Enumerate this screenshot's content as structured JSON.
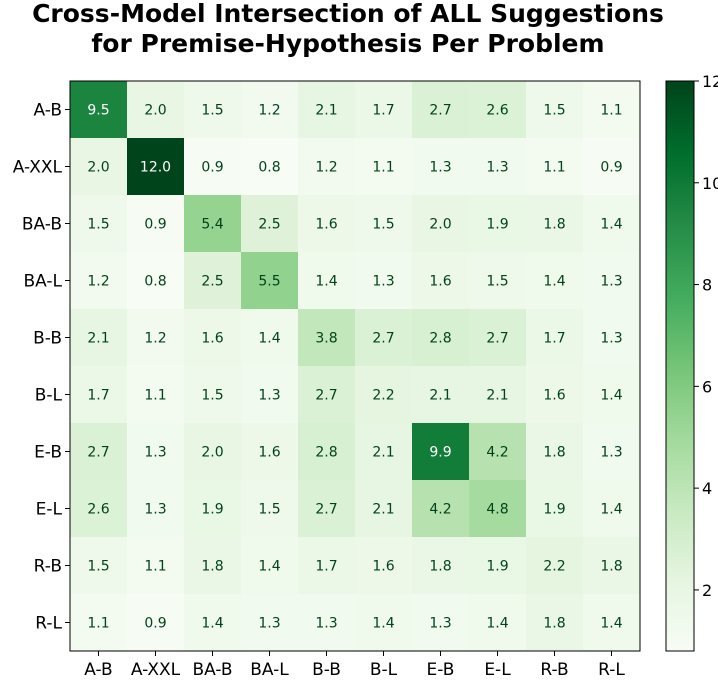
{
  "chart_data": {
    "type": "heatmap",
    "title": "Cross-Model Intersection of ALL Suggestions for Premise-Hypothesis Per Problem",
    "title_lines": [
      "Cross-Model Intersection of ALL Suggestions",
      "for Premise-Hypothesis Per Problem"
    ],
    "x_categories": [
      "A-B",
      "A-XXL",
      "BA-B",
      "BA-L",
      "B-B",
      "B-L",
      "E-B",
      "E-L",
      "R-B",
      "R-L"
    ],
    "y_categories": [
      "A-B",
      "A-XXL",
      "BA-B",
      "BA-L",
      "B-B",
      "B-L",
      "E-B",
      "E-L",
      "R-B",
      "R-L"
    ],
    "values": [
      [
        9.5,
        2.0,
        1.5,
        1.2,
        2.1,
        1.7,
        2.7,
        2.6,
        1.5,
        1.1
      ],
      [
        2.0,
        12.0,
        0.9,
        0.8,
        1.2,
        1.1,
        1.3,
        1.3,
        1.1,
        0.9
      ],
      [
        1.5,
        0.9,
        5.4,
        2.5,
        1.6,
        1.5,
        2.0,
        1.9,
        1.8,
        1.4
      ],
      [
        1.2,
        0.8,
        2.5,
        5.5,
        1.4,
        1.3,
        1.6,
        1.5,
        1.4,
        1.3
      ],
      [
        2.1,
        1.2,
        1.6,
        1.4,
        3.8,
        2.7,
        2.8,
        2.7,
        1.7,
        1.3
      ],
      [
        1.7,
        1.1,
        1.5,
        1.3,
        2.7,
        2.2,
        2.1,
        2.1,
        1.6,
        1.4
      ],
      [
        2.7,
        1.3,
        2.0,
        1.6,
        2.8,
        2.1,
        9.9,
        4.2,
        1.8,
        1.3
      ],
      [
        2.6,
        1.3,
        1.9,
        1.5,
        2.7,
        2.1,
        4.2,
        4.8,
        1.9,
        1.4
      ],
      [
        1.5,
        1.1,
        1.8,
        1.4,
        1.7,
        1.6,
        1.8,
        1.9,
        2.2,
        1.8
      ],
      [
        1.1,
        0.9,
        1.4,
        1.3,
        1.3,
        1.4,
        1.3,
        1.4,
        1.8,
        1.4
      ]
    ],
    "colorscale": "Greens",
    "vmin": 0.8,
    "vmax": 12.0,
    "colorbar_ticks": [
      2,
      4,
      6,
      8,
      10,
      12
    ],
    "colorbar_tick_labels": [
      "2",
      "4",
      "6",
      "8",
      "10",
      "12"
    ],
    "colors": {
      "low": "#f7fcf5",
      "high": "#00441b",
      "text_dark": "#00441b",
      "text_light": "#ffffff"
    }
  }
}
